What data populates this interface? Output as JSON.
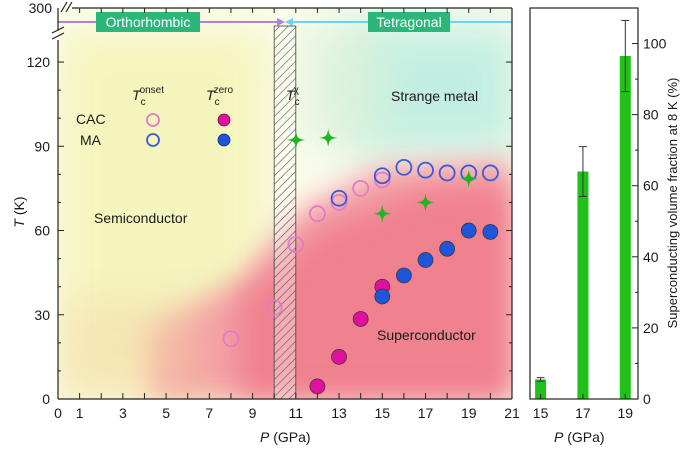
{
  "chart_data": [
    {
      "type": "scatter",
      "x": {
        "label_var": "P",
        "label_unit": " (GPa)",
        "range": [
          0,
          21
        ],
        "ticks": [
          "0",
          "1",
          "2",
          "3",
          "4",
          "5",
          "6",
          "7",
          "8",
          "9",
          "10",
          "11",
          "12",
          "13",
          "14",
          "15",
          "16",
          "17",
          "18",
          "19",
          "20",
          "21"
        ]
      },
      "y": {
        "label_var": "T",
        "label_unit": " (K)",
        "range": [
          0,
          125
        ],
        "ticks": [
          "0",
          "30",
          "60",
          "90",
          "120"
        ],
        "top_tick": "300",
        "axis_break": true
      },
      "phases": {
        "left": "Orthorhombic",
        "right": "Tetragonal",
        "boundary": 10.5
      },
      "region_labels": {
        "semiconductor": "Semiconductor",
        "superconductor": "Superconductor",
        "strange_metal": "Strange metal"
      },
      "transition_band": [
        10,
        11
      ],
      "legend": {
        "col_onset": {
          "main": "T",
          "sub": "c",
          "sup": "onset"
        },
        "col_zero": {
          "main": "T",
          "sub": "c",
          "sup": "zero"
        },
        "col_chi": {
          "main": "T",
          "sub": "c",
          "sup": "χ"
        },
        "rows": [
          "CAC",
          "MA"
        ]
      },
      "series": [
        {
          "name": "CAC Tc onset",
          "marker": "open-circle",
          "color": "#e27bc7",
          "points": [
            [
              8,
              21.5
            ],
            [
              10,
              32.5
            ],
            [
              11,
              55
            ],
            [
              12,
              66
            ],
            [
              13,
              70
            ],
            [
              14,
              75
            ],
            [
              15,
              78
            ]
          ]
        },
        {
          "name": "MA Tc onset",
          "marker": "open-circle",
          "color": "#3a5bd9",
          "points": [
            [
              13,
              71.5
            ],
            [
              15,
              79.5
            ],
            [
              16,
              82.5
            ],
            [
              17,
              81.5
            ],
            [
              18,
              80.5
            ],
            [
              19,
              80.5
            ],
            [
              20,
              80.5
            ]
          ]
        },
        {
          "name": "CAC Tc zero",
          "marker": "filled-circle",
          "color": "#e0109e",
          "points": [
            [
              12,
              4.5
            ],
            [
              13,
              15
            ],
            [
              14,
              28.5
            ],
            [
              15,
              40
            ]
          ]
        },
        {
          "name": "MA Tc zero",
          "marker": "filled-circle",
          "color": "#1f55d8",
          "points": [
            [
              15,
              36.5
            ],
            [
              16,
              44
            ],
            [
              17,
              49.5
            ],
            [
              18,
              53.5
            ],
            [
              19,
              60
            ],
            [
              20,
              59.5
            ]
          ]
        },
        {
          "name": "Tc chi",
          "marker": "star",
          "color": "#22b522",
          "points": [
            [
              12.5,
              93
            ],
            [
              15,
              66
            ],
            [
              17,
              70
            ],
            [
              19,
              78.5
            ]
          ]
        }
      ]
    },
    {
      "type": "bar",
      "categories": [
        "15",
        "17",
        "19"
      ],
      "values": [
        5.5,
        64,
        96.5
      ],
      "errors": [
        0.5,
        7,
        10
      ],
      "color": "#22c11a",
      "x": {
        "label_var": "P",
        "label_unit": " (GPa)",
        "range": [
          14.5,
          19.6
        ]
      },
      "y": {
        "label": "Superconducting volume fraction at 8 K (%)",
        "range": [
          0,
          110
        ],
        "ticks": [
          "0",
          "20",
          "40",
          "60",
          "80",
          "100"
        ]
      }
    }
  ]
}
